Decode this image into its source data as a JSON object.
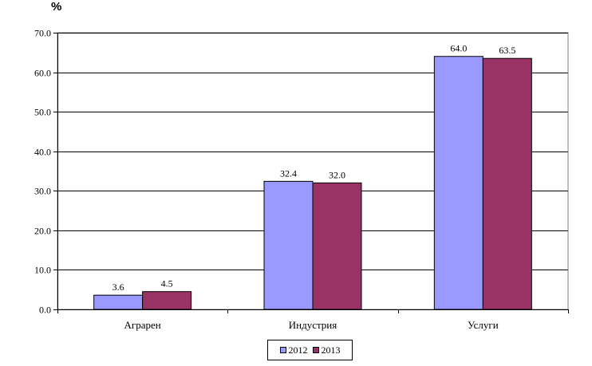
{
  "chart_data": {
    "type": "bar",
    "unit_label": "%",
    "categories": [
      "Аграрен",
      "Индустрия",
      "Услуги"
    ],
    "series": [
      {
        "name": "2012",
        "values": [
          3.6,
          32.4,
          64.0
        ],
        "labels": [
          "3.6",
          "32.4",
          "64.0"
        ],
        "color": "#9999ff"
      },
      {
        "name": "2013",
        "values": [
          4.5,
          32.0,
          63.5
        ],
        "labels": [
          "4.5",
          "32.0",
          "63.5"
        ],
        "color": "#993366"
      }
    ],
    "ylim": [
      0,
      70
    ],
    "yticks": [
      "0.0",
      "10.0",
      "20.0",
      "30.0",
      "40.0",
      "50.0",
      "60.0",
      "70.0"
    ],
    "grid": true,
    "legend_position": "bottom"
  }
}
